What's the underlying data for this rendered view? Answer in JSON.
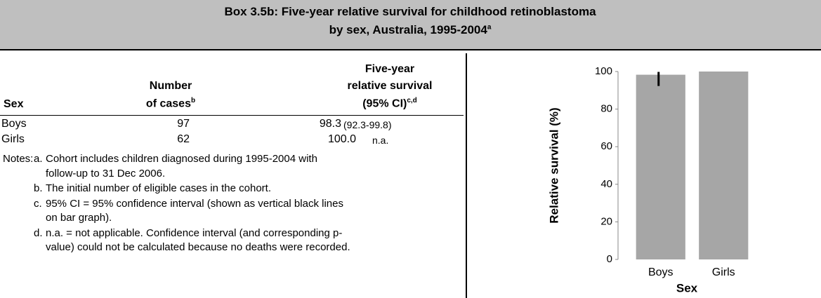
{
  "header": {
    "title_lines": [
      "Box 3.5b: Five-year relative survival for childhood retinoblastoma",
      "by sex, Australia, 1995-2004"
    ],
    "title_sup": "a"
  },
  "table": {
    "headers": {
      "sex": "Sex",
      "cases": [
        "Number",
        "of cases"
      ],
      "cases_sup": "b",
      "survival": [
        "Five-year",
        "relative survival",
        "(95% CI)"
      ],
      "survival_sup": "c,d"
    },
    "rows": [
      [
        "Boys",
        "97",
        "98.3",
        "(92.3-99.8)"
      ],
      [
        "Girls",
        "62",
        "100.0",
        "n.a."
      ]
    ]
  },
  "notes": {
    "label": "Notes:",
    "items": [
      {
        "letter": "a.",
        "lines": [
          "Cohort includes children diagnosed during 1995-2004 with",
          "follow-up to 31 Dec 2006."
        ]
      },
      {
        "letter": "b.",
        "lines": [
          "The initial number of eligible cases in the cohort."
        ]
      },
      {
        "letter": "c.",
        "lines": [
          "95% CI = 95% confidence interval (shown as vertical black lines",
          "on bar graph)."
        ]
      },
      {
        "letter": "d.",
        "lines": [
          "n.a. = not applicable.  Confidence interval (and corresponding p-",
          "value) could not be calculated because no deaths were recorded."
        ]
      }
    ]
  },
  "chart_data": {
    "type": "bar",
    "categories": [
      "Boys",
      "Girls"
    ],
    "values": [
      98.3,
      100
    ],
    "error_low": [
      92.3,
      null
    ],
    "error_high": [
      99.8,
      null
    ],
    "color": "#a6a6a6",
    "ylabel": "Relative survival (%)",
    "xlabel": "Sex",
    "ylim": [
      0,
      100
    ],
    "yticks": [
      0,
      20,
      40,
      60,
      80,
      100
    ]
  }
}
